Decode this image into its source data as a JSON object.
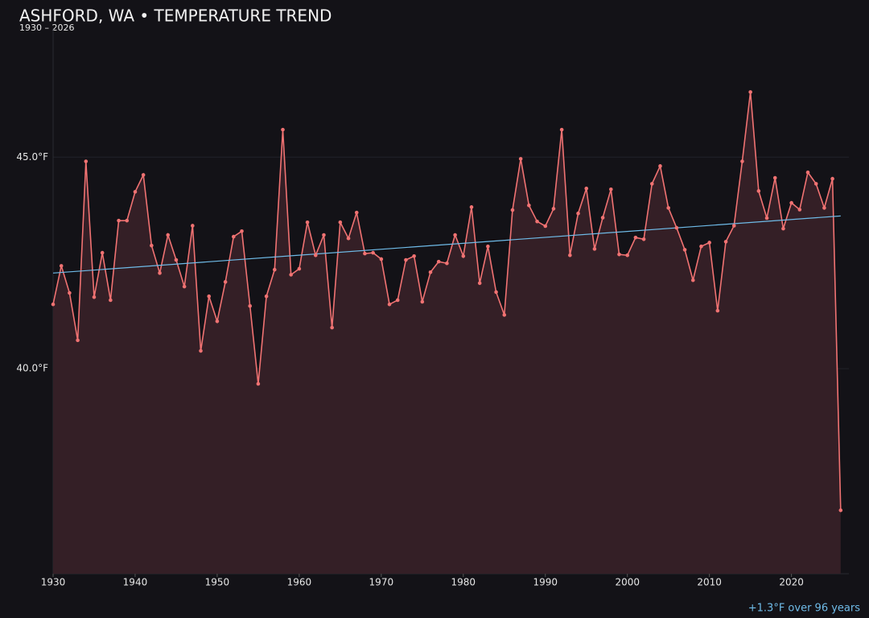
{
  "chart_data": {
    "type": "line",
    "title": "ASHFORD, WA • TEMPERATURE TREND",
    "subtitle": "1930 – 2026",
    "annotation": "+1.3°F over 96 years",
    "x": [
      1930,
      1931,
      1932,
      1933,
      1934,
      1935,
      1936,
      1937,
      1938,
      1939,
      1940,
      1941,
      1942,
      1943,
      1944,
      1945,
      1946,
      1947,
      1948,
      1949,
      1950,
      1951,
      1952,
      1953,
      1954,
      1955,
      1956,
      1957,
      1958,
      1959,
      1960,
      1961,
      1962,
      1963,
      1964,
      1965,
      1966,
      1967,
      1968,
      1969,
      1970,
      1971,
      1972,
      1973,
      1974,
      1975,
      1976,
      1977,
      1978,
      1979,
      1980,
      1981,
      1982,
      1983,
      1984,
      1985,
      1986,
      1987,
      1988,
      1989,
      1990,
      1991,
      1992,
      1993,
      1994,
      1995,
      1996,
      1997,
      1998,
      1999,
      2000,
      2001,
      2002,
      2003,
      2004,
      2005,
      2006,
      2007,
      2008,
      2009,
      2010,
      2011,
      2012,
      2013,
      2014,
      2015,
      2016,
      2017,
      2018,
      2019,
      2020,
      2021,
      2022,
      2023,
      2024,
      2025,
      2026
    ],
    "series": [
      {
        "color": "#f07272",
        "area_color": "#341f26",
        "values": [
          41.52,
          42.43,
          41.79,
          40.67,
          44.9,
          41.69,
          42.74,
          41.62,
          43.5,
          43.5,
          44.18,
          44.58,
          42.91,
          42.26,
          43.16,
          42.57,
          41.94,
          43.38,
          40.42,
          41.71,
          41.12,
          42.05,
          43.12,
          43.25,
          41.48,
          39.64,
          41.71,
          42.34,
          45.65,
          42.22,
          42.36,
          43.46,
          42.68,
          43.16,
          40.97,
          43.46,
          43.08,
          43.69,
          42.72,
          42.74,
          42.59,
          41.52,
          41.62,
          42.57,
          42.66,
          41.58,
          42.28,
          42.53,
          42.49,
          43.16,
          42.66,
          43.82,
          42.02,
          42.89,
          41.81,
          41.27,
          43.75,
          44.96,
          43.86,
          43.48,
          43.37,
          43.78,
          45.65,
          42.68,
          43.67,
          44.26,
          42.83,
          43.57,
          44.24,
          42.7,
          42.68,
          43.1,
          43.06,
          44.37,
          44.79,
          43.8,
          43.33,
          42.81,
          42.09,
          42.89,
          42.98,
          41.37,
          43.0,
          43.38,
          44.9,
          46.54,
          44.2,
          43.56,
          44.51,
          43.31,
          43.92,
          43.76,
          44.64,
          44.37,
          43.8,
          44.49,
          36.65
        ]
      }
    ],
    "trend": {
      "x": [
        1930,
        2026
      ],
      "values": [
        42.26,
        43.61
      ],
      "color": "#6fbbe8"
    },
    "xlim": [
      1930,
      2027
    ],
    "xticks": [
      1930,
      1940,
      1950,
      1960,
      1970,
      1980,
      1990,
      2000,
      2010,
      2020
    ],
    "ylim": [
      35.15,
      48.05
    ],
    "yticks": [
      {
        "value": 40,
        "label": "40.0°F"
      },
      {
        "value": 45,
        "label": "45.0°F"
      }
    ],
    "grid": true
  }
}
